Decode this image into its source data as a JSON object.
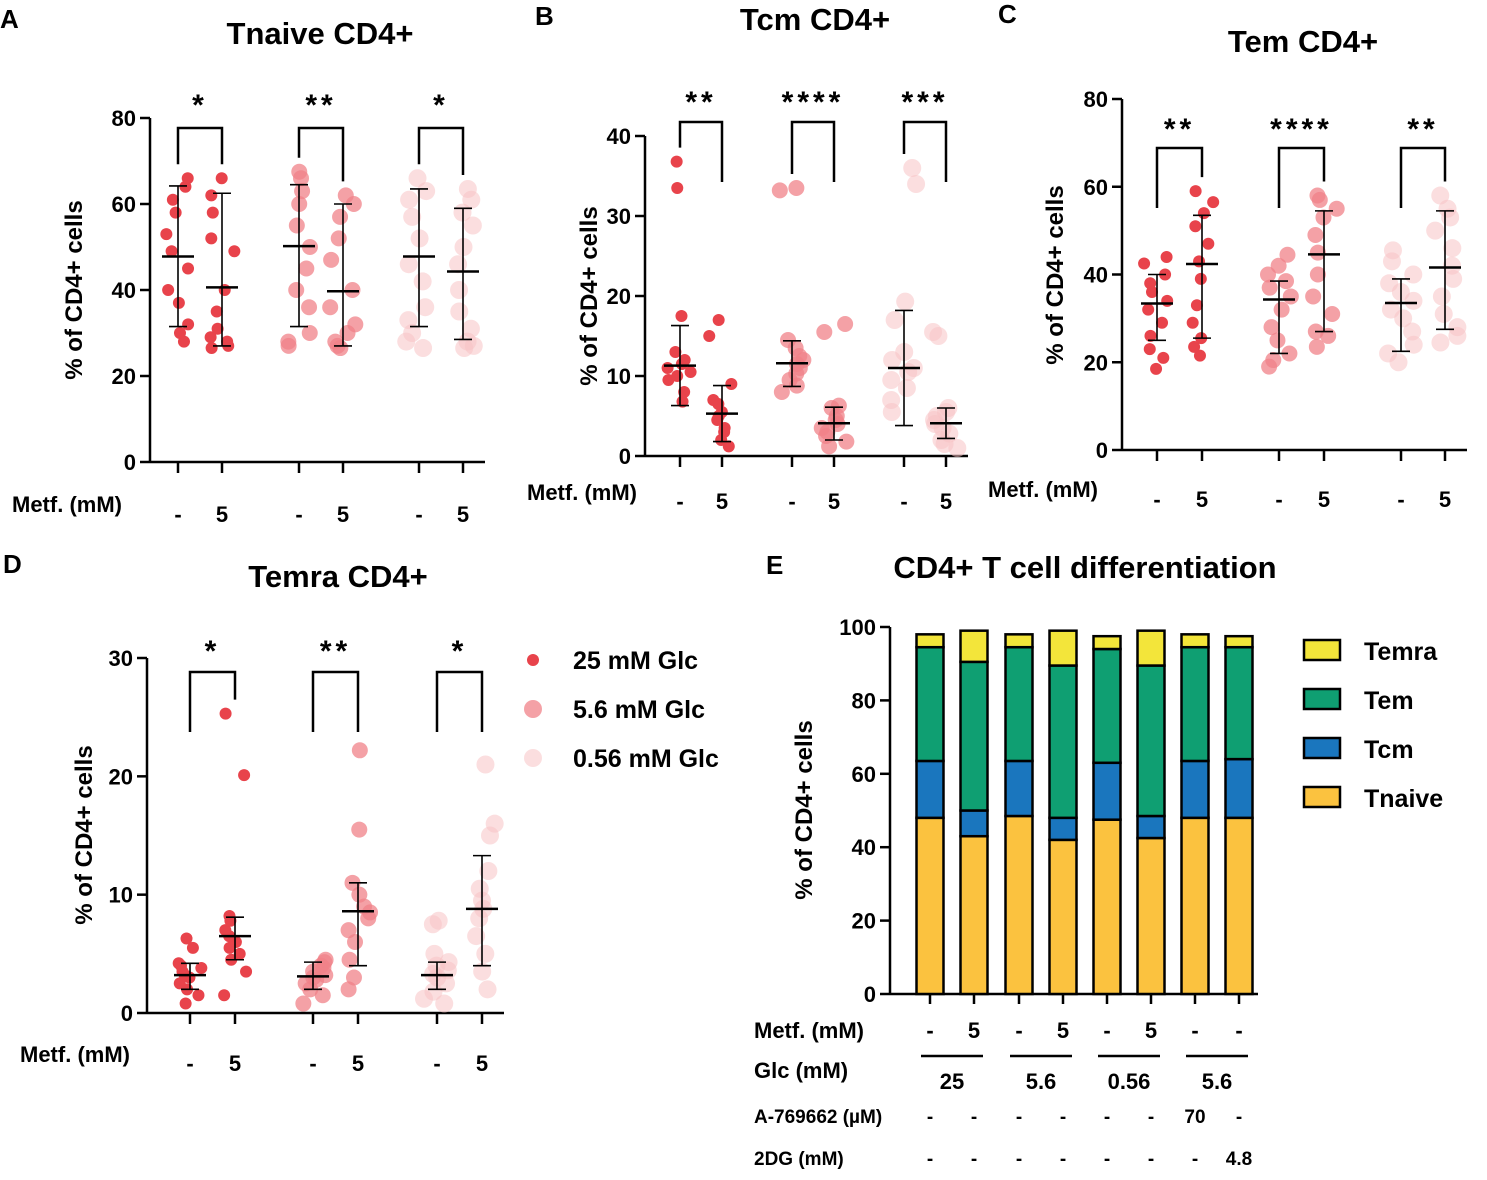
{
  "legend_glc": {
    "title": "",
    "items": [
      {
        "label": "25 mM Glc",
        "color": "#e8434b",
        "opacity": 1.0
      },
      {
        "label": "5.6 mM Glc",
        "color": "#f08288",
        "opacity": 0.75
      },
      {
        "label": "0.56 mM Glc",
        "color": "#f8c3c4",
        "opacity": 0.55
      }
    ]
  },
  "chart_data": [
    {
      "id": "A",
      "type": "scatter",
      "title": "Tnaive CD4+",
      "panel_label": "A",
      "ylabel": "% of CD4+ cells",
      "ylim": [
        0,
        80
      ],
      "yticks": [
        0,
        20,
        40,
        60,
        80
      ],
      "xrow_label": "Metf. (mM)",
      "xticks": [
        "-",
        "5",
        "-",
        "5",
        "-",
        "5"
      ],
      "groups": [
        {
          "glc": "25 mM Glc",
          "metf": "-",
          "mean": 47.8,
          "sd": [
            31.5,
            64.2
          ],
          "points": [
            28,
            30,
            32,
            37,
            40,
            45,
            49,
            53,
            58,
            61,
            64,
            66
          ]
        },
        {
          "glc": "25 mM Glc",
          "metf": "5",
          "mean": 40.6,
          "sd": [
            27,
            62.5
          ],
          "points": [
            26.5,
            27,
            28,
            29,
            31,
            35,
            40,
            49,
            52,
            58,
            62,
            66
          ]
        },
        {
          "glc": "5.6 mM Glc",
          "metf": "-",
          "mean": 50.2,
          "sd": [
            31.5,
            64.5
          ],
          "points": [
            27,
            28,
            30,
            36,
            40,
            45,
            50,
            55,
            60,
            63,
            66,
            67.5
          ]
        },
        {
          "glc": "5.6 mM Glc",
          "metf": "5",
          "mean": 39.7,
          "sd": [
            27,
            60
          ],
          "points": [
            26.5,
            27,
            28,
            30,
            32,
            36,
            40,
            47,
            52,
            57,
            60,
            62
          ]
        },
        {
          "glc": "0.56 mM Glc",
          "metf": "-",
          "mean": 47.8,
          "sd": [
            31.5,
            63.5
          ],
          "points": [
            26.5,
            28,
            30,
            33,
            36,
            42,
            46,
            52,
            57,
            61,
            63,
            66
          ]
        },
        {
          "glc": "0.56 mM Glc",
          "metf": "5",
          "mean": 44.3,
          "sd": [
            28.5,
            59
          ],
          "points": [
            26.5,
            27,
            28,
            31,
            35,
            40,
            46,
            50,
            55,
            58,
            61,
            63.5
          ]
        }
      ],
      "significance": [
        "*",
        "**",
        "*"
      ]
    },
    {
      "id": "B",
      "type": "scatter",
      "title": "Tcm CD4+",
      "panel_label": "B",
      "ylabel": "% of CD4+ cells",
      "ylim": [
        0,
        40
      ],
      "yticks": [
        0,
        10,
        20,
        30,
        40
      ],
      "xrow_label": "Metf. (mM)",
      "xticks": [
        "-",
        "5",
        "-",
        "5",
        "-",
        "5"
      ],
      "groups": [
        {
          "glc": "25 mM Glc",
          "metf": "-",
          "mean": 11.3,
          "sd": [
            6.3,
            16.3
          ],
          "points": [
            6.8,
            8,
            9.5,
            10,
            10.5,
            11,
            11.5,
            12,
            13,
            17.5,
            33.5,
            36.8
          ]
        },
        {
          "glc": "25 mM Glc",
          "metf": "5",
          "mean": 5.3,
          "sd": [
            1.8,
            8.8
          ],
          "points": [
            1.2,
            2,
            3,
            3.5,
            4.5,
            5,
            5.5,
            6.5,
            7,
            9,
            15,
            17
          ]
        },
        {
          "glc": "5.6 mM Glc",
          "metf": "-",
          "mean": 11.6,
          "sd": [
            8.7,
            14.4
          ],
          "points": [
            8,
            8.8,
            9.5,
            10.3,
            11,
            11.5,
            12,
            12.5,
            13.5,
            14.5,
            33.2,
            33.5
          ]
        },
        {
          "glc": "5.6 mM Glc",
          "metf": "5",
          "mean": 4.1,
          "sd": [
            2,
            6.1
          ],
          "points": [
            1.2,
            1.8,
            2.5,
            3,
            3.5,
            4,
            4.5,
            5,
            6,
            6.3,
            15.5,
            16.5
          ]
        },
        {
          "glc": "0.56 mM Glc",
          "metf": "-",
          "mean": 11,
          "sd": [
            3.8,
            18.2
          ],
          "points": [
            5.5,
            7,
            8.5,
            9.5,
            10.5,
            11,
            12,
            13,
            17,
            19.3,
            34,
            36
          ]
        },
        {
          "glc": "0.56 mM Glc",
          "metf": "5",
          "mean": 4.1,
          "sd": [
            2.2,
            6
          ],
          "points": [
            1,
            1.5,
            2,
            2.8,
            3.5,
            4,
            4.5,
            5,
            5.5,
            6,
            15,
            15.5
          ]
        }
      ],
      "significance": [
        "**",
        "****",
        "***"
      ]
    },
    {
      "id": "C",
      "type": "scatter",
      "title": "Tem CD4+",
      "panel_label": "C",
      "ylabel": "% of CD4+ cells",
      "ylim": [
        0,
        80
      ],
      "yticks": [
        0,
        20,
        40,
        60,
        80
      ],
      "xrow_label": "Metf. (mM)",
      "xticks": [
        "-",
        "5",
        "-",
        "5",
        "-",
        "5"
      ],
      "groups": [
        {
          "glc": "25 mM Glc",
          "metf": "-",
          "mean": 33.4,
          "sd": [
            25,
            40
          ],
          "points": [
            18.5,
            21,
            23,
            26,
            29,
            32,
            34,
            36,
            38,
            40,
            42.5,
            44
          ]
        },
        {
          "glc": "25 mM Glc",
          "metf": "5",
          "mean": 42.4,
          "sd": [
            25.5,
            53.5
          ],
          "points": [
            21.5,
            23.5,
            25.5,
            29,
            33,
            39,
            43,
            47,
            51,
            54,
            56.5,
            59
          ]
        },
        {
          "glc": "5.6 mM Glc",
          "metf": "-",
          "mean": 34.3,
          "sd": [
            22,
            38.5
          ],
          "points": [
            19,
            20.5,
            22,
            25,
            28,
            32,
            35,
            37,
            38.5,
            40,
            42,
            44.5
          ]
        },
        {
          "glc": "5.6 mM Glc",
          "metf": "5",
          "mean": 44.6,
          "sd": [
            27,
            54.5
          ],
          "points": [
            23.5,
            26,
            27,
            31,
            35,
            40,
            45,
            49,
            53,
            55,
            57,
            58
          ]
        },
        {
          "glc": "0.56 mM Glc",
          "metf": "-",
          "mean": 33.5,
          "sd": [
            22.5,
            39
          ],
          "points": [
            20,
            22,
            24,
            27,
            30,
            32,
            34,
            36,
            38,
            40,
            43,
            45.5
          ]
        },
        {
          "glc": "0.56 mM Glc",
          "metf": "5",
          "mean": 41.6,
          "sd": [
            27.5,
            54.5
          ],
          "points": [
            24.5,
            26,
            28,
            31,
            35,
            39,
            42,
            46,
            50,
            53,
            55,
            58
          ]
        }
      ],
      "significance": [
        "**",
        "****",
        "**"
      ]
    },
    {
      "id": "D",
      "type": "scatter",
      "title": "Temra CD4+",
      "panel_label": "D",
      "ylabel": "% of CD4+ cells",
      "ylim": [
        0,
        30
      ],
      "yticks": [
        0,
        10,
        20,
        30
      ],
      "xrow_label": "Metf. (mM)",
      "xticks": [
        "-",
        "5",
        "-",
        "5",
        "-",
        "5"
      ],
      "groups": [
        {
          "glc": "25 mM Glc",
          "metf": "-",
          "mean": 3.2,
          "sd": [
            2,
            4.2
          ],
          "points": [
            0.8,
            1.5,
            2,
            2.5,
            3,
            3.2,
            3.5,
            3.8,
            4,
            4.2,
            5.5,
            6.3
          ]
        },
        {
          "glc": "25 mM Glc",
          "metf": "5",
          "mean": 6.5,
          "sd": [
            4.5,
            8.1
          ],
          "points": [
            1.5,
            3.5,
            4.5,
            5,
            5.5,
            6,
            6.5,
            7,
            7.8,
            8.2,
            20.1,
            25.3
          ]
        },
        {
          "glc": "5.6 mM Glc",
          "metf": "-",
          "mean": 3.1,
          "sd": [
            2,
            4.3
          ],
          "points": [
            0.8,
            1.5,
            2,
            2.5,
            2.8,
            3,
            3.2,
            3.5,
            3.8,
            4,
            4.3,
            4.5
          ]
        },
        {
          "glc": "5.6 mM Glc",
          "metf": "5",
          "mean": 8.6,
          "sd": [
            4,
            11
          ],
          "points": [
            2,
            3,
            4.5,
            6,
            7,
            8,
            8.5,
            9,
            10,
            11,
            15.5,
            22.2
          ]
        },
        {
          "glc": "0.56 mM Glc",
          "metf": "-",
          "mean": 3.2,
          "sd": [
            2,
            4.3
          ],
          "points": [
            0.8,
            1.2,
            1.8,
            2.5,
            3,
            3.3,
            3.6,
            4,
            4.3,
            5,
            7.5,
            7.8
          ]
        },
        {
          "glc": "0.56 mM Glc",
          "metf": "5",
          "mean": 8.8,
          "sd": [
            4,
            13.3
          ],
          "points": [
            2,
            3.5,
            5,
            6.5,
            8,
            8.8,
            9.5,
            10.5,
            12,
            15,
            16,
            21
          ]
        }
      ],
      "significance": [
        "*",
        "**",
        "*"
      ]
    },
    {
      "id": "E",
      "type": "bar",
      "stacked": true,
      "title": "CD4+ T cell differentiation",
      "panel_label": "E",
      "ylabel": "% of CD4+ cells",
      "ylim": [
        0,
        100
      ],
      "yticks": [
        0,
        20,
        40,
        60,
        80,
        100
      ],
      "series": [
        {
          "name": "Tnaive",
          "color": "#fbc23f",
          "values": [
            48,
            43,
            48.5,
            42,
            47.5,
            42.5,
            48,
            48
          ]
        },
        {
          "name": "Tcm",
          "color": "#1a76be",
          "values": [
            15.5,
            7,
            15,
            6,
            15.5,
            6,
            15.5,
            16
          ]
        },
        {
          "name": "Tem",
          "color": "#0f9f72",
          "values": [
            31,
            40.5,
            31,
            41.5,
            31,
            41,
            31,
            30.5
          ]
        },
        {
          "name": "Temra",
          "color": "#f3e53a",
          "values": [
            3.5,
            8.5,
            3.5,
            9.5,
            3.5,
            9.5,
            3.5,
            3
          ]
        }
      ],
      "legend": [
        "Temra",
        "Tem",
        "Tcm",
        "Tnaive"
      ],
      "rows": [
        {
          "label": "Metf. (mM)",
          "values": [
            "-",
            "5",
            "-",
            "5",
            "-",
            "5",
            "-",
            "-"
          ]
        },
        {
          "label": "Glc (mM)",
          "groups": [
            {
              "label": "25",
              "span": [
                0,
                1
              ]
            },
            {
              "label": "5.6",
              "span": [
                2,
                3
              ]
            },
            {
              "label": "0.56",
              "span": [
                4,
                5
              ]
            },
            {
              "label": "5.6",
              "span": [
                6,
                7
              ]
            }
          ]
        },
        {
          "label": "A-769662 (µM)",
          "values": [
            "-",
            "-",
            "-",
            "-",
            "-",
            "-",
            "70",
            "-"
          ]
        },
        {
          "label": "2DG (mM)",
          "values": [
            "-",
            "-",
            "-",
            "-",
            "-",
            "-",
            "-",
            "4.8"
          ]
        }
      ]
    }
  ]
}
